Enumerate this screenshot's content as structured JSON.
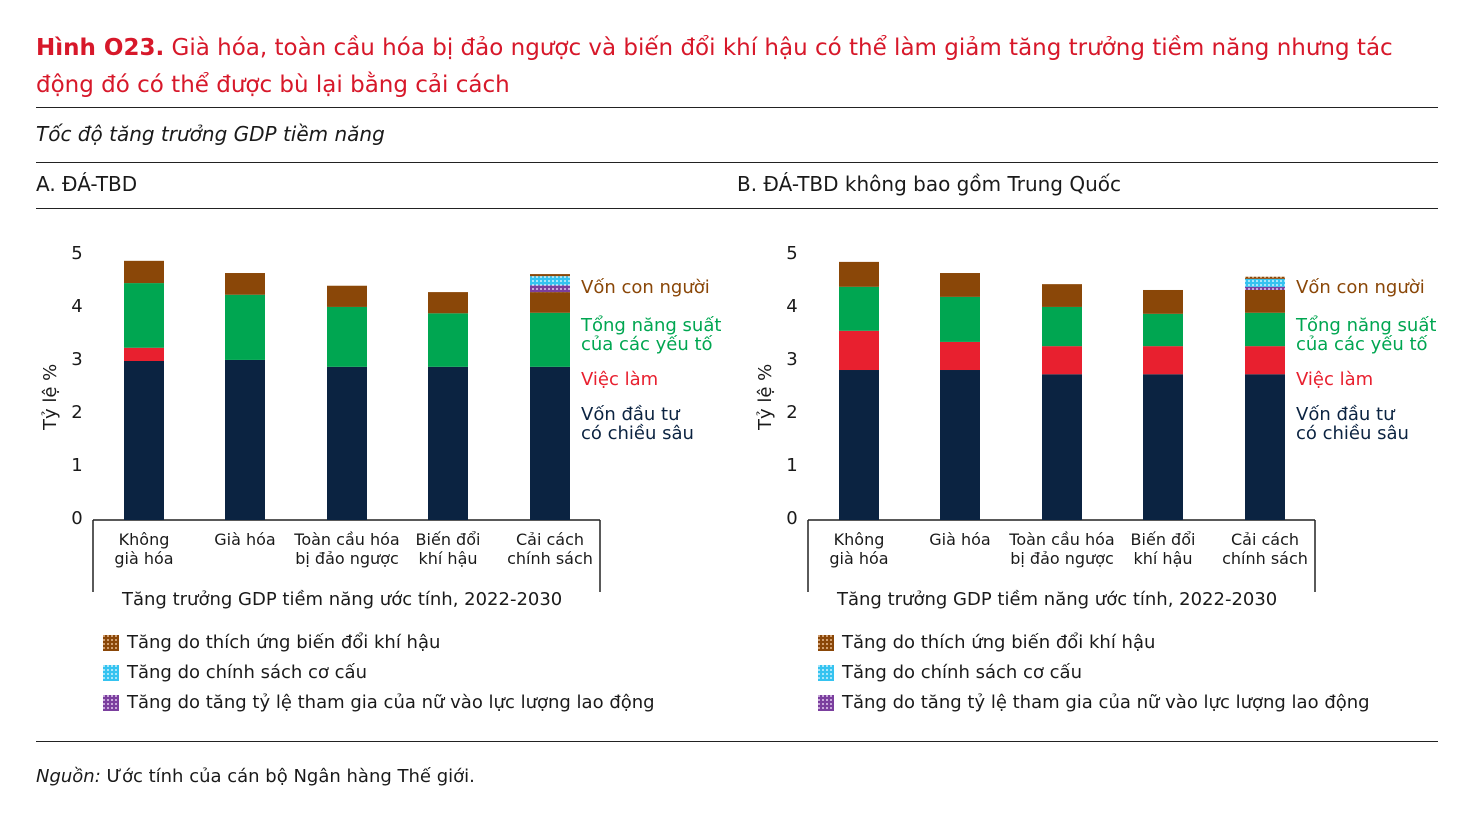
{
  "figure": {
    "label": "Hình O23.",
    "title": "Già hóa, toàn cầu hóa bị đảo ngược và biến đổi khí hậu có thể làm giảm tăng trưởng tiềm năng nhưng tác động đó có thể được bù lại bằng cải cách",
    "subtitle": "Tốc độ tăng trưởng GDP tiềm năng",
    "source_label": "Nguồn:",
    "source_text": " Ước tính của cán bộ Ngân hàng Thế giới."
  },
  "colors": {
    "title": "#d7182a",
    "navy": "#0b2341",
    "red": "#e8202f",
    "green": "#00a651",
    "brown": "#8a4708",
    "purple": "#7b3f9e",
    "cyan": "#35c3f0"
  },
  "chart_data": [
    {
      "type": "bar",
      "stacked": true,
      "title": "A. ĐÁ-TBD",
      "ylabel": "Tỷ lệ %",
      "xlabel": "Tăng trưởng GDP tiềm năng ước tính, 2022-2030",
      "ylim": [
        0,
        5
      ],
      "yticks": [
        "0",
        "1",
        "2",
        "3",
        "4",
        "5"
      ],
      "categories": [
        [
          "Không",
          "già hóa"
        ],
        [
          "Già hóa",
          ""
        ],
        [
          "Toàn cầu hóa",
          "bị đảo ngược"
        ],
        [
          "Biến đổi",
          "khí hậu"
        ],
        [
          "Cải cách",
          "chính sách"
        ]
      ],
      "inline_labels": [
        [
          "Vốn con người"
        ],
        [
          "Tổng năng suất",
          "của các yếu tố"
        ],
        [
          "Việc làm"
        ],
        [
          "Vốn đầu tư",
          "có chiều sâu"
        ]
      ],
      "series": [
        {
          "name": "Vốn đầu tư có chiều sâu",
          "color": "navy",
          "values": [
            3.0,
            3.02,
            2.89,
            2.89,
            2.89
          ]
        },
        {
          "name": "Việc làm",
          "color": "red",
          "values": [
            0.25,
            0,
            0,
            0,
            0
          ]
        },
        {
          "name": "Tổng năng suất của các yếu tố",
          "color": "green",
          "values": [
            1.22,
            1.23,
            1.13,
            1.01,
            1.02
          ]
        },
        {
          "name": "Vốn con người",
          "color": "brown",
          "values": [
            0.42,
            0.41,
            0.4,
            0.4,
            0.39
          ]
        },
        {
          "name": "Tăng do tăng tỷ lệ tham gia của nữ vào lực lượng lao động",
          "color": "purple",
          "values": [
            0,
            0,
            0,
            0,
            0.13
          ]
        },
        {
          "name": "Tăng do chính sách cơ cấu",
          "color": "cyan",
          "values": [
            0,
            0,
            0,
            0,
            0.17
          ]
        },
        {
          "name": "Tăng do thích ứng biến đổi khí hậu",
          "color": "brown",
          "values": [
            0,
            0,
            0,
            0,
            0.04
          ]
        }
      ],
      "legend": [
        "Tăng do thích ứng biến đổi khí hậu",
        "Tăng do chính sách cơ cấu",
        "Tăng do tăng tỷ lệ tham gia của nữ vào lực lượng lao động"
      ]
    },
    {
      "type": "bar",
      "stacked": true,
      "title": "B. ĐÁ-TBD không bao gồm Trung Quốc",
      "ylabel": "Tỷ lệ %",
      "xlabel": "Tăng trưởng GDP tiềm năng ước tính, 2022-2030",
      "ylim": [
        0,
        5
      ],
      "yticks": [
        "0",
        "1",
        "2",
        "3",
        "4",
        "5"
      ],
      "categories": [
        [
          "Không",
          "già hóa"
        ],
        [
          "Già hóa",
          ""
        ],
        [
          "Toàn cầu hóa",
          "bị đảo ngược"
        ],
        [
          "Biến đổi",
          "khí hậu"
        ],
        [
          "Cải cách",
          "chính sách"
        ]
      ],
      "inline_labels": [
        [
          "Vốn con người"
        ],
        [
          "Tổng năng suất",
          "của các yếu tố"
        ],
        [
          "Việc làm"
        ],
        [
          "Vốn đầu tư",
          "có chiều sâu"
        ]
      ],
      "series": [
        {
          "name": "Vốn đầu tư có chiều sâu",
          "color": "navy",
          "values": [
            2.83,
            2.83,
            2.75,
            2.75,
            2.75
          ]
        },
        {
          "name": "Việc làm",
          "color": "red",
          "values": [
            0.74,
            0.53,
            0.53,
            0.53,
            0.53
          ]
        },
        {
          "name": "Tổng năng suất của các yếu tố",
          "color": "green",
          "values": [
            0.83,
            0.85,
            0.74,
            0.61,
            0.63
          ]
        },
        {
          "name": "Vốn con người",
          "color": "brown",
          "values": [
            0.47,
            0.45,
            0.43,
            0.45,
            0.43
          ]
        },
        {
          "name": "Tăng do tăng tỷ lệ tham gia của nữ vào lực lượng lao động",
          "color": "purple",
          "values": [
            0,
            0,
            0,
            0,
            0.06
          ]
        },
        {
          "name": "Tăng do chính sách cơ cấu",
          "color": "cyan",
          "values": [
            0,
            0,
            0,
            0,
            0.15
          ]
        },
        {
          "name": "Tăng do thích ứng biến đổi khí hậu",
          "color": "brown",
          "values": [
            0,
            0,
            0,
            0,
            0.04
          ]
        }
      ],
      "legend": [
        "Tăng do thích ứng biến đổi khí hậu",
        "Tăng do chính sách cơ cấu",
        "Tăng do tăng tỷ lệ tham gia của nữ vào lực lượng lao động"
      ]
    }
  ]
}
